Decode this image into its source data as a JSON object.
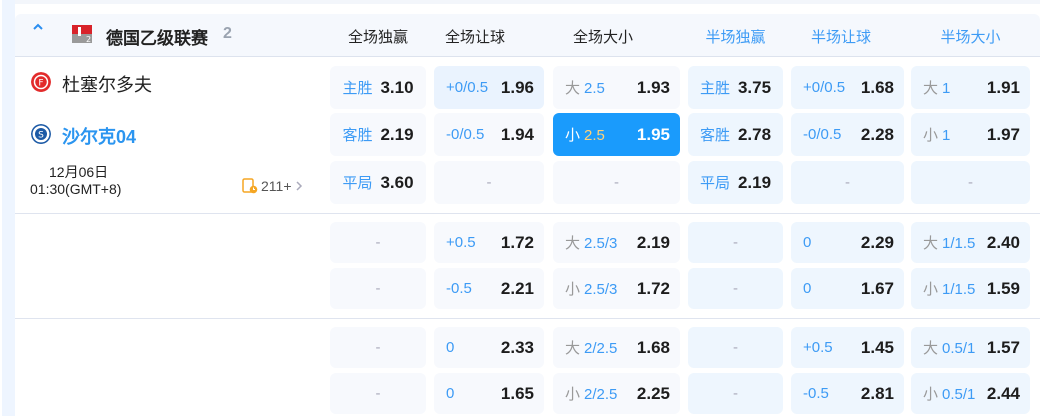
{
  "league": {
    "name": "德国乙级联赛",
    "count": "2"
  },
  "columns": [
    "全场独赢",
    "全场让球",
    "全场大小",
    "半场独赢",
    "半场让球",
    "半场大小"
  ],
  "match": {
    "home": "杜塞尔多夫",
    "away": "沙尔克04",
    "date": "12月06日",
    "time": "01:30(GMT+8)",
    "more": "211+"
  },
  "colors": {
    "accent": "#1a9bfc",
    "selected_line": "#ffd27a",
    "label_blue": "#3d9bf5"
  },
  "groups": [
    {
      "rows": [
        [
          {
            "t": "wdl",
            "label": "主胜",
            "odds": "3.10"
          },
          {
            "t": "pair",
            "line": "+0/0.5",
            "odds": "1.96",
            "hl": true
          },
          {
            "t": "ou",
            "side": "大",
            "line": "2.5",
            "odds": "1.93"
          },
          {
            "t": "wdl",
            "label": "主胜",
            "odds": "3.75"
          },
          {
            "t": "pair",
            "line": "+0/0.5",
            "odds": "1.68"
          },
          {
            "t": "ou",
            "side": "大",
            "line": "1",
            "odds": "1.91"
          }
        ],
        [
          {
            "t": "wdl",
            "label": "客胜",
            "odds": "2.19"
          },
          {
            "t": "pair",
            "line": "-0/0.5",
            "odds": "1.94"
          },
          {
            "t": "ou",
            "side": "小",
            "line": "2.5",
            "odds": "1.95",
            "selected": true
          },
          {
            "t": "wdl",
            "label": "客胜",
            "odds": "2.78"
          },
          {
            "t": "pair",
            "line": "-0/0.5",
            "odds": "2.28"
          },
          {
            "t": "ou",
            "side": "小",
            "line": "1",
            "odds": "1.97"
          }
        ],
        [
          {
            "t": "wdl",
            "label": "平局",
            "odds": "3.60"
          },
          {
            "t": "empty",
            "dash": "-"
          },
          {
            "t": "empty",
            "dash": "-"
          },
          {
            "t": "wdl",
            "label": "平局",
            "odds": "2.19"
          },
          {
            "t": "empty",
            "dash": "-"
          },
          {
            "t": "empty",
            "dash": "-"
          }
        ]
      ]
    },
    {
      "rows": [
        [
          {
            "t": "empty",
            "dash": "-"
          },
          {
            "t": "pair",
            "line": "+0.5",
            "odds": "1.72"
          },
          {
            "t": "ou",
            "side": "大",
            "line": "2.5/3",
            "odds": "2.19"
          },
          {
            "t": "empty",
            "dash": "-"
          },
          {
            "t": "pair",
            "line": "0",
            "odds": "2.29"
          },
          {
            "t": "ou",
            "side": "大",
            "line": "1/1.5",
            "odds": "2.40"
          }
        ],
        [
          {
            "t": "empty",
            "dash": "-"
          },
          {
            "t": "pair",
            "line": "-0.5",
            "odds": "2.21"
          },
          {
            "t": "ou",
            "side": "小",
            "line": "2.5/3",
            "odds": "1.72"
          },
          {
            "t": "empty",
            "dash": "-"
          },
          {
            "t": "pair",
            "line": "0",
            "odds": "1.67"
          },
          {
            "t": "ou",
            "side": "小",
            "line": "1/1.5",
            "odds": "1.59"
          }
        ]
      ]
    },
    {
      "rows": [
        [
          {
            "t": "empty",
            "dash": "-"
          },
          {
            "t": "pair",
            "line": "0",
            "odds": "2.33"
          },
          {
            "t": "ou",
            "side": "大",
            "line": "2/2.5",
            "odds": "1.68"
          },
          {
            "t": "empty",
            "dash": "-"
          },
          {
            "t": "pair",
            "line": "+0.5",
            "odds": "1.45"
          },
          {
            "t": "ou",
            "side": "大",
            "line": "0.5/1",
            "odds": "1.57"
          }
        ],
        [
          {
            "t": "empty",
            "dash": "-"
          },
          {
            "t": "pair",
            "line": "0",
            "odds": "1.65"
          },
          {
            "t": "ou",
            "side": "小",
            "line": "2/2.5",
            "odds": "2.25"
          },
          {
            "t": "empty",
            "dash": "-"
          },
          {
            "t": "pair",
            "line": "-0.5",
            "odds": "2.81"
          },
          {
            "t": "ou",
            "side": "小",
            "line": "0.5/1",
            "odds": "2.44"
          }
        ]
      ]
    }
  ]
}
